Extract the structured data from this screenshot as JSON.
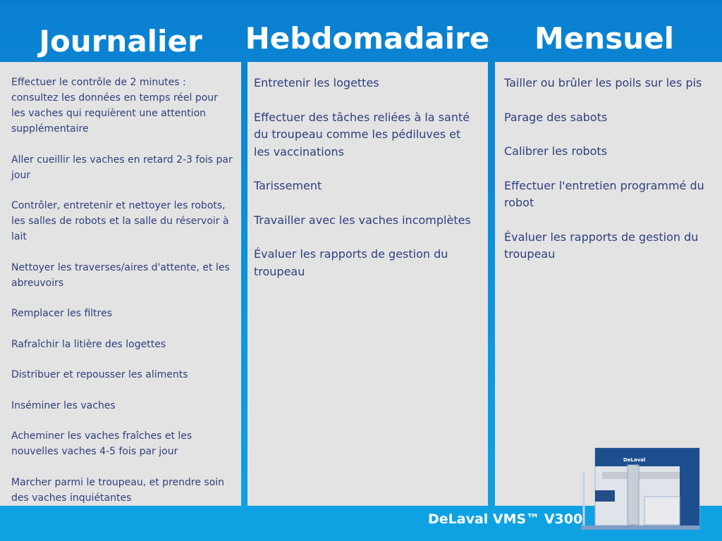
{
  "columns": [
    {
      "title": "Journalier",
      "items": [
        "Effectuer le contrôle de 2 minutes : consultez les données en temps réel pour les vaches qui requièrent une attention supplémentaire",
        "Aller cueillir les vaches en retard 2-3 fois par jour",
        "Contrôler, entretenir et nettoyer les robots, les salles de robots et la salle du réservoir à lait",
        "Nettoyer les traverses/aires d'attente, et les abreuvoirs",
        "Remplacer les filtres",
        "Rafraîchir la litière des logettes",
        "Distribuer et repousser les aliments",
        "Inséminer les vaches",
        "Acheminer les vaches fraîches et les nouvelles vaches 4-5 fois par jour",
        "Marcher parmi le troupeau, et prendre soin des vaches inquiétantes"
      ]
    },
    {
      "title": "Hebdomadaire",
      "items": [
        "Entretenir les logettes",
        "Effectuer des tâches reliées à la santé du troupeau comme les pédiluves et les vaccinations",
        "Tarissement",
        "Travailler avec les vaches incomplètes",
        "Évaluer les rapports de gestion du troupeau"
      ]
    },
    {
      "title": "Mensuel",
      "items": [
        "Tailler ou brûler les poils sur les pis",
        "Parage des sabots",
        "Calibrer les robots",
        "Effectuer l'entretien programmé du robot",
        "Évaluer les rapports de gestion du troupeau"
      ]
    }
  ],
  "footer": {
    "product": "DeLaval VMS™ V300",
    "robot_logo": "DeLaval"
  },
  "colors": {
    "background": "#0e96dd",
    "panel": "#e3e3e3",
    "text": "#2f3f7c"
  }
}
